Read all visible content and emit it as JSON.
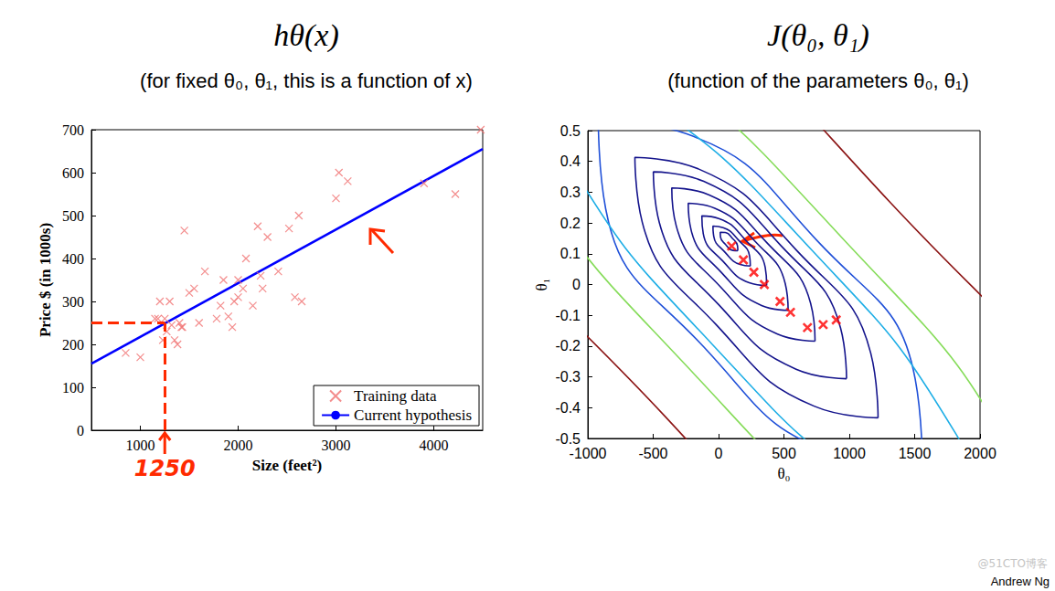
{
  "chart_data": [
    {
      "type": "scatter",
      "title": "hθ(x)",
      "subtitle": "(for fixed θ₀, θ₁, this is a function of x)",
      "x_label": "Size (feet²)",
      "y_label": "Price $ (in 1000s)",
      "xlim": [
        500,
        4500
      ],
      "xticks": [
        1000,
        2000,
        3000,
        4000
      ],
      "ylim": [
        0,
        700
      ],
      "yticks": [
        0,
        100,
        200,
        300,
        400,
        500,
        600,
        700
      ],
      "grid": false,
      "legend": "lower right",
      "series": [
        {
          "name": "Training data",
          "type": "scatter",
          "color": "#f07070",
          "marker": "x",
          "values": [
            [
              850,
              180
            ],
            [
              1000,
              170
            ],
            [
              1150,
              260
            ],
            [
              1180,
              260
            ],
            [
              1200,
              300
            ],
            [
              1230,
              210
            ],
            [
              1250,
              260
            ],
            [
              1270,
              230
            ],
            [
              1300,
              300
            ],
            [
              1320,
              245
            ],
            [
              1350,
              210
            ],
            [
              1380,
              200
            ],
            [
              1400,
              250
            ],
            [
              1420,
              240
            ],
            [
              1430,
              240
            ],
            [
              1450,
              465
            ],
            [
              1500,
              320
            ],
            [
              1550,
              330
            ],
            [
              1600,
              250
            ],
            [
              1660,
              370
            ],
            [
              1780,
              260
            ],
            [
              1820,
              290
            ],
            [
              1850,
              350
            ],
            [
              1900,
              265
            ],
            [
              1940,
              240
            ],
            [
              1960,
              300
            ],
            [
              2000,
              350
            ],
            [
              2000,
              310
            ],
            [
              2050,
              330
            ],
            [
              2080,
              400
            ],
            [
              2150,
              290
            ],
            [
              2200,
              475
            ],
            [
              2230,
              360
            ],
            [
              2250,
              330
            ],
            [
              2300,
              450
            ],
            [
              2410,
              370
            ],
            [
              2520,
              470
            ],
            [
              2580,
              310
            ],
            [
              2620,
              500
            ],
            [
              2650,
              300
            ],
            [
              3000,
              540
            ],
            [
              3030,
              600
            ],
            [
              3120,
              580
            ],
            [
              3900,
              575
            ],
            [
              4220,
              550
            ],
            [
              4480,
              700
            ]
          ]
        },
        {
          "name": "Current hypothesis",
          "type": "line",
          "color": "#0000ff",
          "line_style": "solid",
          "values": [
            [
              500,
              155
            ],
            [
              4500,
              655
            ]
          ]
        }
      ],
      "annotations": [
        {
          "text": "1250",
          "x": 1250,
          "y": 250,
          "color": "#ff2a00"
        }
      ]
    },
    {
      "type": "contour",
      "title": "J(θ₀, θ₁)",
      "subtitle": "(function of the parameters θ₀, θ₁)",
      "x_label": "θ₀",
      "y_label": "θ₁",
      "xlim": [
        -1000,
        2000
      ],
      "xticks": [
        -1000,
        -500,
        0,
        500,
        1000,
        1500,
        2000
      ],
      "ylim": [
        -0.5,
        0.5
      ],
      "yticks": [
        -0.5,
        -0.4,
        -0.3,
        -0.2,
        -0.1,
        0,
        0.1,
        0.2,
        0.3,
        0.4,
        0.5
      ],
      "grid": false,
      "contours": [
        {
          "color": "#14148c",
          "values": [
            [
              147,
              0.11
            ],
            [
              109,
              0.111
            ],
            [
              54,
              0.13
            ],
            [
              15,
              0.154
            ],
            [
              13,
              0.17
            ],
            [
              51,
              0.169
            ],
            [
              106,
              0.15
            ],
            [
              145,
              0.126
            ]
          ]
        },
        {
          "color": "#14148c",
          "values": [
            [
              243,
              0.06
            ],
            [
              165,
              0.065
            ],
            [
              49,
              0.105
            ],
            [
              -37,
              0.157
            ],
            [
              -43,
              0.19
            ],
            [
              35,
              0.185
            ],
            [
              151,
              0.145
            ],
            [
              237,
              0.093
            ]
          ]
        },
        {
          "color": "#14148c",
          "values": [
            [
              368,
              -0.003
            ],
            [
              234,
              0.006
            ],
            [
              33,
              0.076
            ],
            [
              -117,
              0.165
            ],
            [
              -128,
              0.223
            ],
            [
              6,
              0.214
            ],
            [
              207,
              0.144
            ],
            [
              357,
              0.055
            ]
          ]
        },
        {
          "color": "#14148c",
          "values": [
            [
              532,
              -0.084
            ],
            [
              329,
              -0.068
            ],
            [
              22,
              0.039
            ],
            [
              -210,
              0.177
            ],
            [
              -232,
              0.264
            ],
            [
              -29,
              0.248
            ],
            [
              278,
              0.141
            ],
            [
              510,
              0.003
            ]
          ]
        },
        {
          "color": "#14148c",
          "values": [
            [
              738,
              -0.184
            ],
            [
              451,
              -0.161
            ],
            [
              11,
              -0.006
            ],
            [
              -324,
              0.191
            ],
            [
              -358,
              0.314
            ],
            [
              -71,
              0.291
            ],
            [
              369,
              0.136
            ],
            [
              704,
              -0.061
            ]
          ]
        },
        {
          "color": "#14148c",
          "values": [
            [
              979,
              -0.306
            ],
            [
              593,
              -0.275
            ],
            [
              0,
              -0.065
            ],
            [
              -453,
              0.201
            ],
            [
              -499,
              0.366
            ],
            [
              -113,
              0.335
            ],
            [
              480,
              0.125
            ],
            [
              933,
              -0.141
            ]
          ]
        },
        {
          "color": "#14148c",
          "values": [
            [
              1220,
              -0.433
            ],
            [
              731,
              -0.395
            ],
            [
              -17,
              -0.131
            ],
            [
              -584,
              0.203
            ],
            [
              -640,
              0.413
            ],
            [
              -151,
              0.375
            ],
            [
              597,
              0.111
            ],
            [
              1164,
              -0.223
            ]
          ]
        },
        {
          "color": "#1f50d8",
          "values": [
            [
              1560,
              -0.594
            ],
            [
              889,
              -0.55
            ],
            [
              -115,
              -0.202
            ],
            [
              -864,
              0.247
            ],
            [
              -920,
              0.534
            ],
            [
              -249,
              0.49
            ],
            [
              755,
              0.142
            ],
            [
              1504,
              -0.307
            ]
          ]
        },
        {
          "color": "#1eaee6",
          "values": [
            [
              2047,
              -0.821
            ],
            [
              1273,
              -0.699
            ],
            [
              -53,
              -0.192
            ],
            [
              -1155,
              0.405
            ],
            [
              -1387,
              0.741
            ],
            [
              -613,
              0.619
            ],
            [
              713,
              0.112
            ],
            [
              1815,
              -0.485
            ]
          ]
        },
        {
          "color": "#86dc5a",
          "values": [
            [
              2621,
              -1.089
            ],
            [
              1567,
              -0.948
            ],
            [
              -182,
              -0.293
            ],
            [
              -1602,
              0.493
            ],
            [
              -1861,
              0.949
            ],
            [
              -807,
              0.808
            ],
            [
              942,
              0.153
            ],
            [
              2362,
              -0.633
            ]
          ]
        },
        {
          "color": "#8b1414",
          "values": [
            [
              3407,
              -1.425
            ],
            [
              1926,
              -1.274
            ],
            [
              -419,
              -0.424
            ],
            [
              -2255,
              0.628
            ],
            [
              -2507,
              1.265
            ],
            [
              -1026,
              1.114
            ],
            [
              1319,
              0.264
            ],
            [
              3155,
              -0.788
            ]
          ]
        }
      ],
      "series": [
        {
          "type": "scatter",
          "color": "#ff0000",
          "marker": "x",
          "values": [
            [
              900,
              -0.115
            ],
            [
              800,
              -0.13
            ],
            [
              680,
              -0.14
            ],
            [
              550,
              -0.09
            ],
            [
              470,
              -0.055
            ],
            [
              350,
              0.0
            ],
            [
              270,
              0.04
            ],
            [
              190,
              0.08
            ],
            [
              100,
              0.125
            ]
          ]
        }
      ]
    }
  ],
  "footer": "Andrew Ng",
  "watermark": "@51CTO博客"
}
